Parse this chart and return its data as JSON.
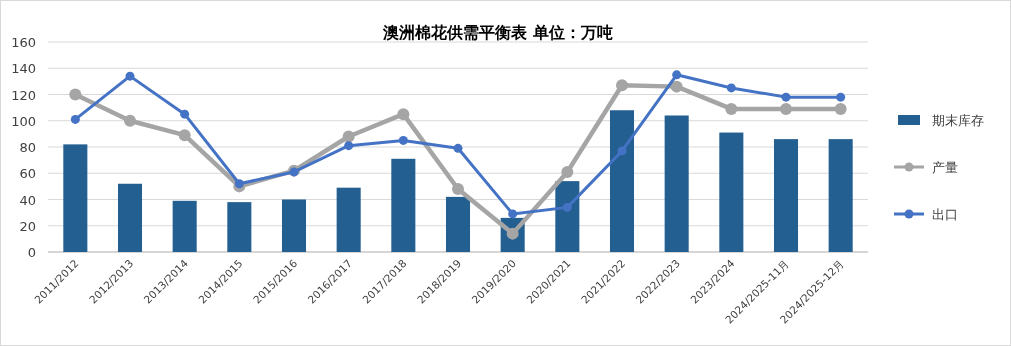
{
  "chart_data": {
    "type": "bar",
    "title": "澳洲棉花供需平衡表 单位：万吨",
    "categories": [
      "2011/2012",
      "2012/2013",
      "2013/2014",
      "2014/2015",
      "2015/2016",
      "2016/2017",
      "2017/2018",
      "2018/2019",
      "2019/2020",
      "2020/2021",
      "2021/2022",
      "2022/2023",
      "2023/2024",
      "2024/2025-11月",
      "2024/2025-12月"
    ],
    "series": [
      {
        "name": "期末库存",
        "color": "#245f91",
        "values": [
          82,
          52,
          39,
          38,
          40,
          49,
          71,
          42,
          26,
          54,
          108,
          104,
          91,
          86,
          86
        ]
      },
      {
        "name": "产量",
        "type": "line",
        "color": "#a5a5a5",
        "values": [
          120,
          100,
          89,
          50,
          62,
          88,
          105,
          48,
          14,
          61,
          127,
          126,
          109,
          109,
          109
        ]
      },
      {
        "name": "出口",
        "type": "line",
        "color": "#4472c4",
        "values": [
          101,
          134,
          105,
          52,
          61,
          81,
          85,
          79,
          29,
          34,
          77,
          135,
          125,
          118,
          118
        ]
      }
    ],
    "ylim": [
      0,
      160
    ],
    "yticks": [
      0,
      20,
      40,
      60,
      80,
      100,
      120,
      140,
      160
    ],
    "grid": "y",
    "legend": "right",
    "marker": "circle"
  }
}
